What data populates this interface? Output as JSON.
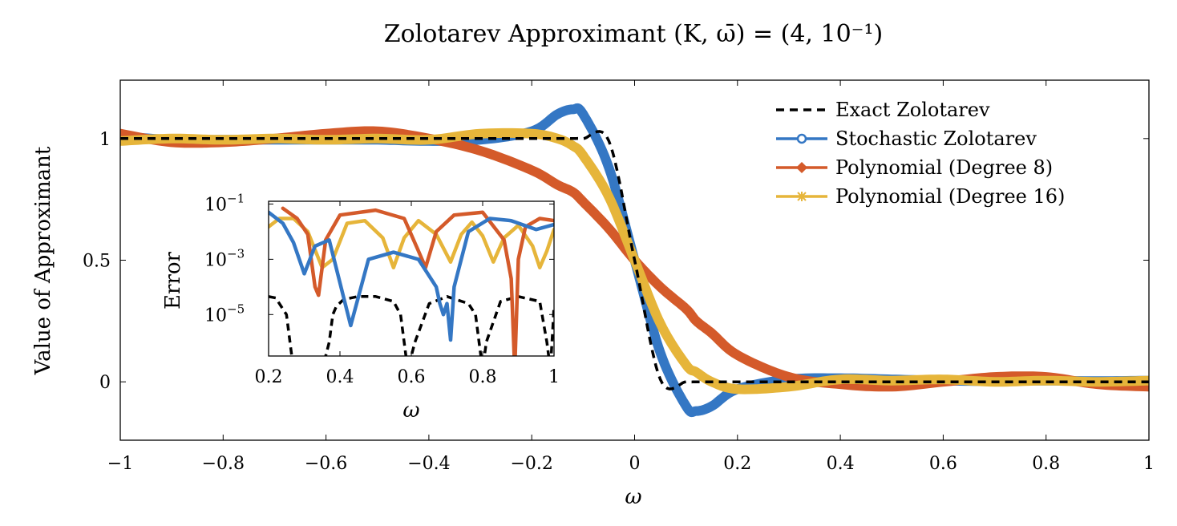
{
  "chart_data": [
    {
      "type": "line",
      "title": "Zolotarev Approximant (K, ω̄) = (4, 10⁻¹)",
      "xlabel": "ω",
      "ylabel": "Value of Approximant",
      "xlim": [
        -1,
        1
      ],
      "ylim": [
        -0.24,
        1.24
      ],
      "xticks": [
        "−1",
        "−0.8",
        "−0.6",
        "−0.4",
        "−0.2",
        "0",
        "0.2",
        "0.4",
        "0.6",
        "0.8",
        "1"
      ],
      "yticks": [
        "0",
        "0.5",
        "1"
      ],
      "grid": false,
      "legend_position": "top-right",
      "x": [
        -1,
        -0.9,
        -0.8,
        -0.7,
        -0.6,
        -0.5,
        -0.4,
        -0.3,
        -0.2,
        -0.15,
        -0.12,
        -0.1,
        -0.05,
        0,
        0.05,
        0.1,
        0.12,
        0.15,
        0.2,
        0.3,
        0.4,
        0.5,
        0.6,
        0.7,
        0.8,
        0.9,
        1
      ],
      "series": [
        {
          "name": "Exact Zolotarev",
          "color": "#000000",
          "style": "dashed",
          "values": [
            1,
            1,
            1,
            1,
            1,
            1,
            1,
            1,
            1,
            1,
            1,
            1,
            0.99,
            0.5,
            0.01,
            0,
            0,
            0,
            0,
            0,
            0,
            0,
            0,
            0,
            0,
            0,
            0
          ]
        },
        {
          "name": "Stochastic Zolotarev",
          "color": "#3477c4",
          "marker": "circle",
          "values": [
            1.01,
            0.995,
            0.995,
            0.995,
            0.995,
            0.995,
            0.99,
            0.995,
            1.03,
            1.1,
            1.12,
            1.1,
            0.88,
            0.5,
            0.12,
            -0.1,
            -0.12,
            -0.1,
            -0.03,
            0.01,
            0.015,
            0.01,
            0.005,
            0.003,
            0.005,
            0.003,
            0.005
          ]
        },
        {
          "name": "Polynomial (Degree 8)",
          "color": "#d45a2a",
          "marker": "diamond",
          "values": [
            1.02,
            0.985,
            0.985,
            1.0,
            1.02,
            1.03,
            1.0,
            0.95,
            0.87,
            0.81,
            0.78,
            0.74,
            0.63,
            0.5,
            0.39,
            0.3,
            0.25,
            0.2,
            0.11,
            0.02,
            -0.01,
            -0.02,
            0.0,
            0.02,
            0.02,
            -0.01,
            -0.02
          ]
        },
        {
          "name": "Polynomial (Degree 16)",
          "color": "#e6b53a",
          "marker": "asterisk",
          "values": [
            0.99,
            1.0,
            0.995,
            1.0,
            0.995,
            1.0,
            0.995,
            1.02,
            1.02,
            1.0,
            0.97,
            0.93,
            0.76,
            0.5,
            0.24,
            0.07,
            0.04,
            0.0,
            -0.03,
            -0.02,
            0.01,
            0.005,
            0.01,
            0.0,
            0.005,
            0.0,
            0.005
          ]
        }
      ]
    },
    {
      "type": "line",
      "title": "",
      "xlabel": "ω",
      "ylabel": "Error",
      "xlim": [
        0.2,
        1
      ],
      "ylim": [
        -6.5,
        -0.9
      ],
      "yscale": "log",
      "xticks": [
        "0.2",
        "0.4",
        "0.6",
        "0.8",
        "1"
      ],
      "yticks": [
        {
          "base": "10",
          "exp": "−1"
        },
        {
          "base": "10",
          "exp": "−3"
        },
        {
          "base": "10",
          "exp": "−5"
        }
      ],
      "grid": false,
      "legend_position": "none",
      "series": [
        {
          "name": "Exact Zolotarev",
          "color": "#000000",
          "style": "dashed",
          "x": [
            0.2,
            0.22,
            0.25,
            0.26,
            0.27,
            0.35,
            0.37,
            0.38,
            0.39,
            0.41,
            0.45,
            0.5,
            0.55,
            0.57,
            0.58,
            0.59,
            0.61,
            0.65,
            0.7,
            0.76,
            0.78,
            0.79,
            0.8,
            0.81,
            0.85,
            0.9,
            0.96,
            0.98,
            0.99,
            1.0
          ],
          "values": [
            4.5e-05,
            4e-05,
            1e-05,
            1e-06,
            1e-07,
            1e-07,
            1e-06,
            1e-05,
            2e-05,
            3.5e-05,
            4.5e-05,
            4.5e-05,
            3e-05,
            1e-05,
            1e-06,
            1e-07,
            1e-06,
            2.5e-05,
            4.5e-05,
            2.5e-05,
            1e-05,
            1e-06,
            1e-07,
            1e-06,
            3e-05,
            4.5e-05,
            3e-05,
            1e-06,
            1e-07,
            2e-05
          ]
        },
        {
          "name": "Stochastic Zolotarev",
          "color": "#3477c4",
          "marker": "circle",
          "x": [
            0.2,
            0.24,
            0.27,
            0.3,
            0.33,
            0.37,
            0.43,
            0.48,
            0.55,
            0.62,
            0.67,
            0.68,
            0.69,
            0.7,
            0.71,
            0.72,
            0.76,
            0.82,
            0.88,
            0.95,
            1.0
          ],
          "values": [
            0.05,
            0.02,
            0.004,
            0.0003,
            0.003,
            0.005,
            4e-06,
            0.001,
            0.0018,
            0.001,
            0.0001,
            2.5e-05,
            1e-05,
            2.5e-05,
            1.2e-06,
            0.0001,
            0.01,
            0.03,
            0.025,
            0.012,
            0.018
          ]
        },
        {
          "name": "Polynomial (Degree 8)",
          "color": "#d45a2a",
          "marker": "diamond",
          "x": [
            0.24,
            0.28,
            0.31,
            0.33,
            0.34,
            0.36,
            0.4,
            0.5,
            0.58,
            0.62,
            0.64,
            0.67,
            0.72,
            0.8,
            0.86,
            0.88,
            0.89,
            0.9,
            0.92,
            0.96,
            1.0
          ],
          "values": [
            0.07,
            0.03,
            0.008,
            0.0001,
            5e-05,
            0.005,
            0.04,
            0.06,
            0.03,
            0.002,
            0.0005,
            0.01,
            0.04,
            0.05,
            0.005,
            0.0002,
            1e-07,
            0.001,
            0.015,
            0.03,
            0.025
          ]
        },
        {
          "name": "Polynomial (Degree 16)",
          "color": "#e6b53a",
          "marker": "asterisk",
          "x": [
            0.2,
            0.23,
            0.27,
            0.31,
            0.35,
            0.38,
            0.42,
            0.47,
            0.52,
            0.55,
            0.58,
            0.62,
            0.67,
            0.71,
            0.74,
            0.77,
            0.8,
            0.83,
            0.86,
            0.9,
            0.94,
            0.96,
            0.98,
            1.0
          ],
          "values": [
            0.015,
            0.03,
            0.03,
            0.01,
            0.0005,
            0.001,
            0.02,
            0.025,
            0.006,
            0.0005,
            0.006,
            0.025,
            0.008,
            0.0008,
            0.008,
            0.022,
            0.007,
            0.0008,
            0.006,
            0.017,
            0.003,
            0.0005,
            0.002,
            0.012
          ]
        }
      ]
    }
  ]
}
